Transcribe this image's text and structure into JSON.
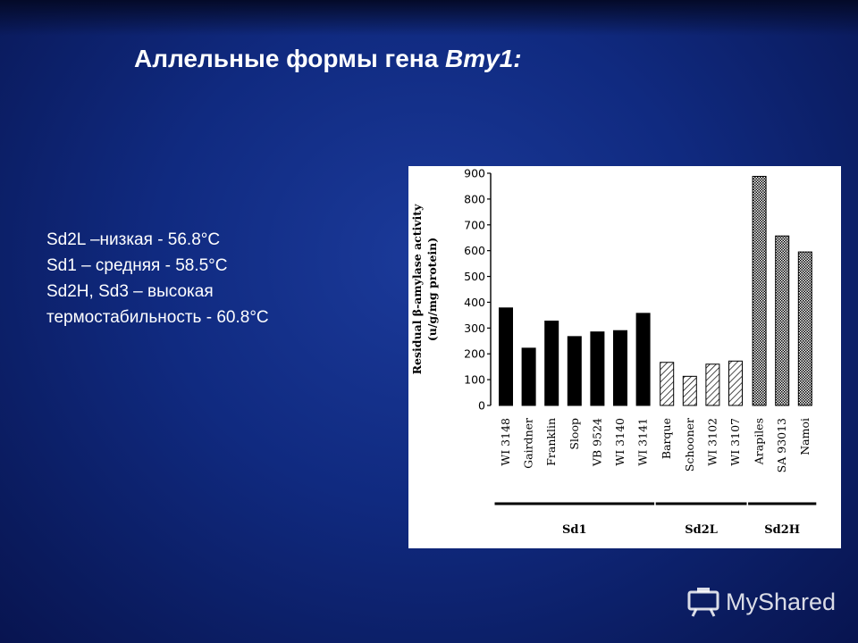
{
  "slide": {
    "title_prefix": "Аллельные формы гена ",
    "title_gene": "Bmy1:",
    "notes": [
      "Sd2L –низкая - 56.8°C",
      "Sd1 – средняя -  58.5°C",
      "Sd2H, Sd3 – высокая",
      "термостабильность  - 60.8°C"
    ]
  },
  "watermark": {
    "text": "MyShared",
    "icon": "projector-logo-icon"
  },
  "chart_data": {
    "type": "bar",
    "title": "",
    "xlabel": "",
    "ylabel": "Residual β-amylase activity",
    "ylabel_units": "(u/g/mg protein)",
    "ylim": [
      0,
      900
    ],
    "yticks": [
      0,
      100,
      200,
      300,
      400,
      500,
      600,
      700,
      800,
      900
    ],
    "grid": false,
    "categories": [
      "WI 3148",
      "Gairdner",
      "Franklin",
      "Sloop",
      "VB 9524",
      "WI 3140",
      "WI 3141",
      "Barque",
      "Schooner",
      "WI 3102",
      "WI 3107",
      "Arapiles",
      "SA 93013",
      "Namoi"
    ],
    "values": [
      378,
      222,
      327,
      267,
      285,
      290,
      357,
      167,
      113,
      160,
      172,
      888,
      657,
      595
    ],
    "groups": [
      {
        "name": "Sd1",
        "start": 0,
        "end": 6,
        "pattern": "solid"
      },
      {
        "name": "Sd2L",
        "start": 7,
        "end": 10,
        "pattern": "hatch"
      },
      {
        "name": "Sd2H",
        "start": 11,
        "end": 13,
        "pattern": "dots"
      }
    ],
    "colors": {
      "solid": "#000000",
      "outline": "#000000"
    }
  }
}
